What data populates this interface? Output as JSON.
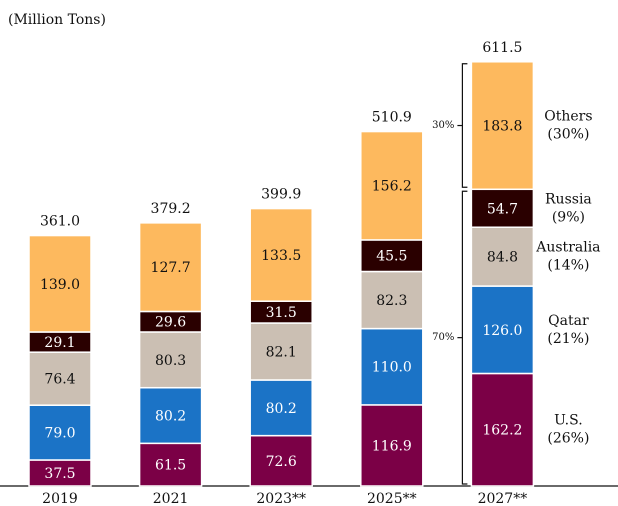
{
  "chart_data": {
    "type": "stacked_bar",
    "title": "(Million Tons)",
    "categories": [
      "2019",
      "2021",
      "2023**",
      "2025**",
      "2027**"
    ],
    "series": [
      {
        "name": "U.S.",
        "share_label": "(26%)",
        "color": "#7b0046",
        "values": [
          37.5,
          61.5,
          72.6,
          116.9,
          162.2
        ],
        "value_labels": [
          "37.5",
          "61.5",
          "72.6",
          "116.9",
          "162.2"
        ]
      },
      {
        "name": "Qatar",
        "share_label": "(21%)",
        "color": "#1b73c6",
        "values": [
          79.0,
          80.2,
          80.2,
          110.0,
          126.0
        ],
        "value_labels": [
          "79.0",
          "80.2",
          "80.2",
          "110.0",
          "126.0"
        ]
      },
      {
        "name": "Australia",
        "share_label": "(14%)",
        "color": "#cbbfb3",
        "values": [
          76.4,
          80.3,
          82.1,
          82.3,
          84.8
        ],
        "value_labels": [
          "76.4",
          "80.3",
          "82.1",
          "82.3",
          "84.8"
        ]
      },
      {
        "name": "Russia",
        "share_label": "(9%)",
        "color": "#2a0000",
        "values": [
          29.1,
          29.6,
          31.5,
          45.5,
          54.7
        ],
        "value_labels": [
          "29.1",
          "29.6",
          "31.5",
          "45.5",
          "54.7"
        ]
      },
      {
        "name": "Others",
        "share_label": "(30%)",
        "color": "#fdb95e",
        "values": [
          139.0,
          127.7,
          133.5,
          156.2,
          183.8
        ],
        "value_labels": [
          "139.0",
          "127.7",
          "133.5",
          "156.2",
          "183.8"
        ]
      }
    ],
    "totals": {
      "values": [
        361.0,
        379.2,
        399.9,
        510.9,
        611.5
      ],
      "value_labels": [
        "361.0",
        "379.2",
        "399.9",
        "510.9",
        "611.5"
      ]
    },
    "annotations": [
      "30%",
      "70%"
    ],
    "ylim": [
      0,
      640
    ]
  }
}
